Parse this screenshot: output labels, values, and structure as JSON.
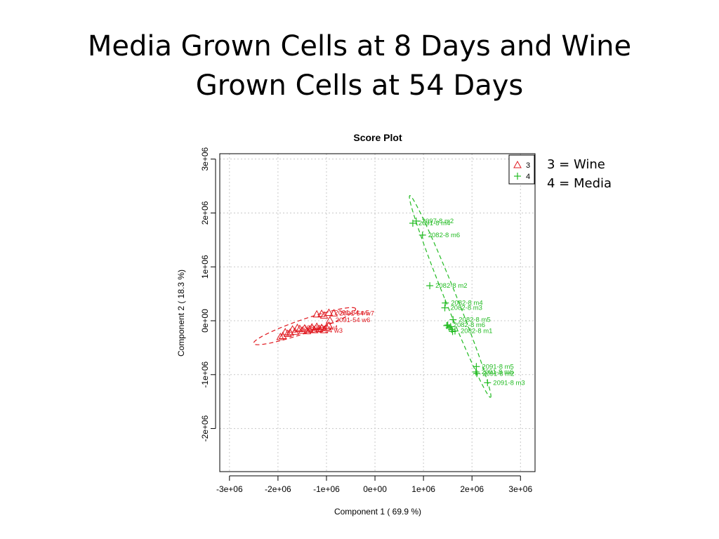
{
  "slide": {
    "title_line1": "Media Grown Cells at 8 Days and Wine",
    "title_line2": "Grown Cells at 54 Days"
  },
  "legend_note": {
    "line1": "3 = Wine",
    "line2": "4 = Media"
  },
  "chart_data": {
    "type": "scatter",
    "title": "Score Plot",
    "xlabel": "Component 1 ( 69.9 %)",
    "ylabel": "Component 2 ( 18.3 %)",
    "xlim": [
      -3200000,
      3300000
    ],
    "ylim": [
      -2800000,
      3100000
    ],
    "x_ticks": [
      -3000000,
      -2000000,
      -1000000,
      0,
      1000000,
      2000000,
      3000000
    ],
    "x_tick_labels": [
      "-3e+06",
      "-2e+06",
      "-1e+06",
      "0e+00",
      "1e+06",
      "2e+06",
      "3e+06"
    ],
    "y_ticks": [
      -2000000,
      -1000000,
      0,
      1000000,
      2000000,
      3000000
    ],
    "y_tick_labels": [
      "-2e+06",
      "-1e+06",
      "0e+00",
      "1e+06",
      "2e+06",
      "3e+06"
    ],
    "grid": true,
    "legend": {
      "placement": "top-right",
      "entries": [
        "3",
        "4"
      ]
    },
    "colors": {
      "wine": "#e0181f",
      "media": "#22bb22"
    },
    "series": [
      {
        "name": "3",
        "marker": "triangle",
        "color": "#e0181f",
        "ellipse": {
          "center": [
            -1450000,
            -100000
          ],
          "rx": 1100000,
          "ry": 130000,
          "angle_deg": 17
        },
        "points": [
          {
            "x": -950000,
            "y": 150000,
            "label": "2091-54 w5"
          },
          {
            "x": -850000,
            "y": 140000,
            "label": "2091-54 w7"
          },
          {
            "x": -930000,
            "y": 10000,
            "label": "2091-54 w6"
          },
          {
            "x": -1600000,
            "y": -130000,
            "label": "2082-54 w4"
          },
          {
            "x": -1500000,
            "y": -180000,
            "label": "2082-54 w3"
          },
          {
            "x": -1200000,
            "y": 120000,
            "label": ""
          },
          {
            "x": -1100000,
            "y": 130000,
            "label": ""
          },
          {
            "x": -1050000,
            "y": 100000,
            "label": ""
          },
          {
            "x": -1700000,
            "y": -160000,
            "label": ""
          },
          {
            "x": -1650000,
            "y": -200000,
            "label": ""
          },
          {
            "x": -1550000,
            "y": -150000,
            "label": ""
          },
          {
            "x": -1450000,
            "y": -140000,
            "label": ""
          },
          {
            "x": -1400000,
            "y": -190000,
            "label": ""
          },
          {
            "x": -1350000,
            "y": -160000,
            "label": ""
          },
          {
            "x": -1300000,
            "y": -120000,
            "label": ""
          },
          {
            "x": -1250000,
            "y": -170000,
            "label": ""
          },
          {
            "x": -1200000,
            "y": -110000,
            "label": ""
          },
          {
            "x": -1150000,
            "y": -150000,
            "label": ""
          },
          {
            "x": -1100000,
            "y": -130000,
            "label": ""
          },
          {
            "x": -1050000,
            "y": -170000,
            "label": ""
          },
          {
            "x": -1000000,
            "y": -120000,
            "label": ""
          },
          {
            "x": -950000,
            "y": -90000,
            "label": ""
          },
          {
            "x": -1750000,
            "y": -220000,
            "label": ""
          },
          {
            "x": -1800000,
            "y": -240000,
            "label": ""
          },
          {
            "x": -1900000,
            "y": -280000,
            "label": ""
          },
          {
            "x": -1850000,
            "y": -210000,
            "label": ""
          },
          {
            "x": -1950000,
            "y": -300000,
            "label": ""
          }
        ]
      },
      {
        "name": "4",
        "marker": "plus",
        "color": "#22bb22",
        "ellipse": {
          "center": [
            1550000,
            450000
          ],
          "rx": 2050000,
          "ry": 120000,
          "angle_deg": -66
        },
        "points": [
          {
            "x": 850000,
            "y": 1850000,
            "label": "2097-8 m2"
          },
          {
            "x": 780000,
            "y": 1810000,
            "label": "2091-8 m4"
          },
          {
            "x": 980000,
            "y": 1590000,
            "label": "2082-8 m6"
          },
          {
            "x": 1130000,
            "y": 650000,
            "label": "2082-8 m2"
          },
          {
            "x": 1450000,
            "y": 330000,
            "label": "2082-8 m4"
          },
          {
            "x": 1440000,
            "y": 240000,
            "label": "2082-8 m3"
          },
          {
            "x": 1610000,
            "y": 20000,
            "label": "2082-8 m5"
          },
          {
            "x": 1500000,
            "y": -80000,
            "label": "2082-8 m6"
          },
          {
            "x": 1480000,
            "y": -90000,
            "label": ""
          },
          {
            "x": 1560000,
            "y": -110000,
            "label": ""
          },
          {
            "x": 1530000,
            "y": -130000,
            "label": ""
          },
          {
            "x": 1580000,
            "y": -160000,
            "label": ""
          },
          {
            "x": 1600000,
            "y": -200000,
            "label": ""
          },
          {
            "x": 1650000,
            "y": -190000,
            "label": "2082-8 m1"
          },
          {
            "x": 2090000,
            "y": -850000,
            "label": "2091-8 m5"
          },
          {
            "x": 2080000,
            "y": -950000,
            "label": "2091-8 m6"
          },
          {
            "x": 2100000,
            "y": -980000,
            "label": "2091-8 m2"
          },
          {
            "x": 2320000,
            "y": -1150000,
            "label": "2091-8 m3"
          }
        ]
      }
    ]
  }
}
